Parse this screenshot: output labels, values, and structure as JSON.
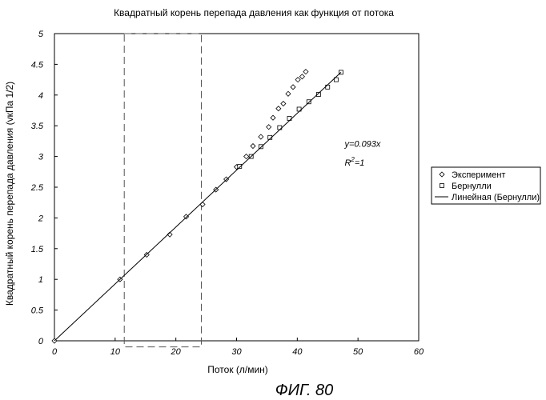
{
  "chart_data": {
    "type": "scatter",
    "title": "Квадратный корень перепада давления как функция от потока",
    "xlabel": "Поток (л/мин)",
    "ylabel": "Квадратный корень перепада давления (vкПа 1/2)",
    "xlim": [
      0,
      60
    ],
    "ylim": [
      0,
      5
    ],
    "x_ticks": [
      "0",
      "10",
      "20",
      "30",
      "40",
      "50",
      "60"
    ],
    "y_ticks": [
      "0",
      "0.5",
      "1",
      "1.5",
      "2",
      "2.5",
      "3",
      "3.5",
      "4",
      "4.5",
      "5"
    ],
    "grid": false,
    "legend_position": "right",
    "series": [
      {
        "name": "Эксперимент",
        "marker": "diamond",
        "x": [
          0,
          10.8,
          15.2,
          19.0,
          21.7,
          24.4,
          26.6,
          28.3,
          30.0,
          31.6,
          32.7,
          34.0,
          35.3,
          36.0,
          36.9,
          37.7,
          38.5,
          39.3,
          40.1,
          40.8,
          41.4
        ],
        "y": [
          0,
          1.0,
          1.4,
          1.73,
          2.02,
          2.22,
          2.46,
          2.63,
          2.83,
          3.0,
          3.17,
          3.32,
          3.48,
          3.63,
          3.78,
          3.86,
          4.02,
          4.13,
          4.25,
          4.3,
          4.38
        ]
      },
      {
        "name": "Бернулли",
        "marker": "square",
        "x": [
          30.5,
          32.4,
          34.0,
          35.5,
          37.1,
          38.7,
          40.3,
          41.9,
          43.5,
          45.0,
          46.4,
          47.2
        ],
        "y": [
          2.84,
          3.0,
          3.16,
          3.31,
          3.47,
          3.62,
          3.77,
          3.89,
          4.01,
          4.13,
          4.25,
          4.37
        ]
      },
      {
        "name": "Линейная (Бернулли)",
        "type": "line",
        "x": [
          0,
          47.2
        ],
        "y": [
          0,
          4.37
        ]
      }
    ],
    "annotations": [
      {
        "text": "y=0.093x",
        "at": [
          47.8,
          3.16
        ]
      },
      {
        "text": "R",
        "sup": "2",
        "suffix": "=1",
        "at": [
          47.8,
          2.85
        ]
      }
    ],
    "highlight_box": {
      "x_range": [
        11.5,
        24.2
      ],
      "y_range": [
        -0.1,
        5.0
      ],
      "style": "dashed"
    }
  },
  "figure_label": "ФИГ. 80"
}
